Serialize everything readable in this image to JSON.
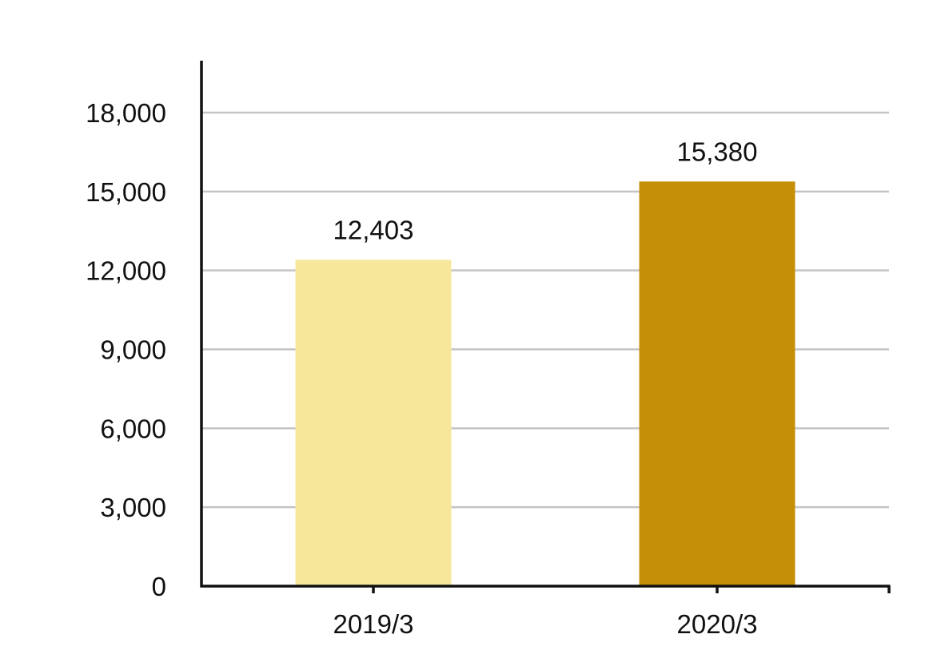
{
  "chart_data": {
    "type": "bar",
    "title": "",
    "xlabel": "",
    "ylabel": "",
    "categories": [
      "2019/3",
      "2020/3"
    ],
    "values": [
      12403,
      15380
    ],
    "value_labels": [
      "12,403",
      "15,380"
    ],
    "bar_colors": [
      "#f6e79b",
      "#c58f07"
    ],
    "ylim": [
      0,
      19800
    ],
    "yticks": [
      0,
      3000,
      6000,
      9000,
      12000,
      15000,
      18000
    ],
    "ytick_labels": [
      "0",
      "3,000",
      "6,000",
      "9,000",
      "12,000",
      "15,000",
      "18,000"
    ],
    "grid": true,
    "legend": "none"
  }
}
